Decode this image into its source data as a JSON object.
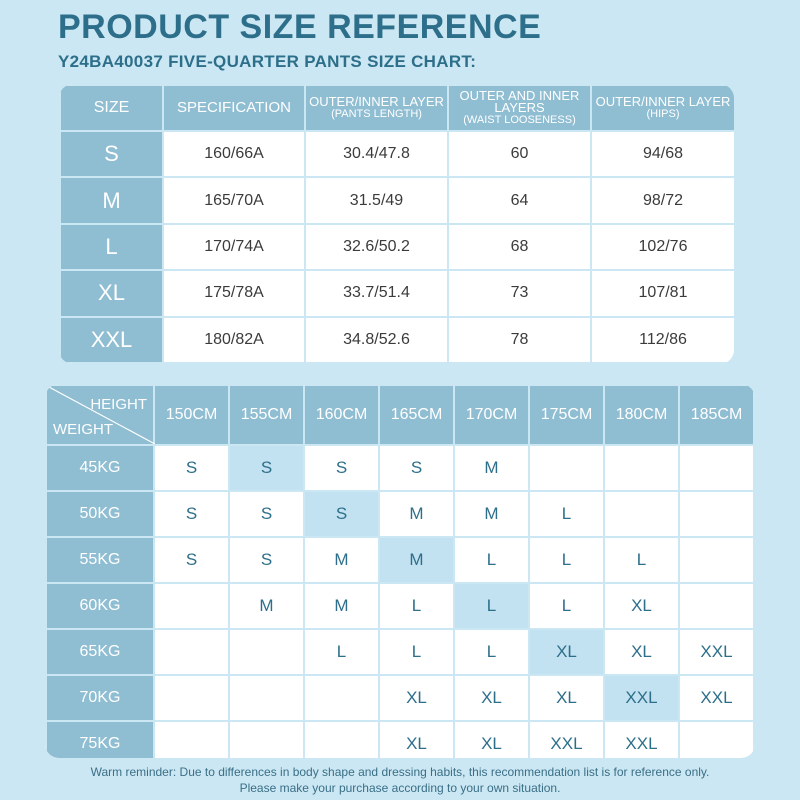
{
  "title": "PRODUCT SIZE REFERENCE",
  "subtitle": "Y24BA40037 FIVE-QUARTER PANTS SIZE CHART:",
  "size_table": {
    "headers": [
      {
        "main": "SIZE",
        "sub": ""
      },
      {
        "main": "SPECIFICATION",
        "sub": ""
      },
      {
        "main": "OUTER/INNER LAYER",
        "sub": "(PANTS LENGTH)"
      },
      {
        "main": "OUTER AND INNER LAYERS",
        "sub": "(WAIST LOOSENESS)"
      },
      {
        "main": "OUTER/INNER LAYER",
        "sub": "(HIPS)"
      }
    ],
    "rows": [
      [
        "S",
        "160/66A",
        "30.4/47.8",
        "60",
        "94/68"
      ],
      [
        "M",
        "165/70A",
        "31.5/49",
        "64",
        "98/72"
      ],
      [
        "L",
        "170/74A",
        "32.6/50.2",
        "68",
        "102/76"
      ],
      [
        "XL",
        "175/78A",
        "33.7/51.4",
        "73",
        "107/81"
      ],
      [
        "XXL",
        "180/82A",
        "34.8/52.6",
        "78",
        "112/86"
      ]
    ]
  },
  "recommend_table": {
    "height_label": "HEIGHT",
    "weight_label": "WEIGHT",
    "heights": [
      "150CM",
      "155CM",
      "160CM",
      "165CM",
      "170CM",
      "175CM",
      "180CM",
      "185CM"
    ],
    "rows": [
      {
        "weight": "45KG",
        "cells": [
          "S",
          "S",
          "S",
          "S",
          "M",
          "",
          "",
          ""
        ],
        "highlight": 1
      },
      {
        "weight": "50KG",
        "cells": [
          "S",
          "S",
          "S",
          "M",
          "M",
          "L",
          "",
          ""
        ],
        "highlight": 2
      },
      {
        "weight": "55KG",
        "cells": [
          "S",
          "S",
          "M",
          "M",
          "L",
          "L",
          "L",
          ""
        ],
        "highlight": 3
      },
      {
        "weight": "60KG",
        "cells": [
          "",
          "M",
          "M",
          "L",
          "L",
          "L",
          "XL",
          ""
        ],
        "highlight": 4
      },
      {
        "weight": "65KG",
        "cells": [
          "",
          "",
          "L",
          "L",
          "L",
          "XL",
          "XL",
          "XXL"
        ],
        "highlight": 5
      },
      {
        "weight": "70KG",
        "cells": [
          "",
          "",
          "",
          "XL",
          "XL",
          "XL",
          "XXL",
          "XXL"
        ],
        "highlight": 6
      },
      {
        "weight": "75KG",
        "cells": [
          "",
          "",
          "",
          "XL",
          "XL",
          "XXL",
          "XXL",
          ""
        ],
        "highlight": -1
      }
    ]
  },
  "reminder": {
    "line1": "Warm reminder: Due to differences in body shape and dressing habits, this recommendation list is for reference only.",
    "line2": "Please make your purchase according to your own situation."
  },
  "colors": {
    "background": "#cbe7f3",
    "header": "#8fbdd2",
    "highlight": "#c2e2f1",
    "accent_text": "#2d6f8a"
  }
}
